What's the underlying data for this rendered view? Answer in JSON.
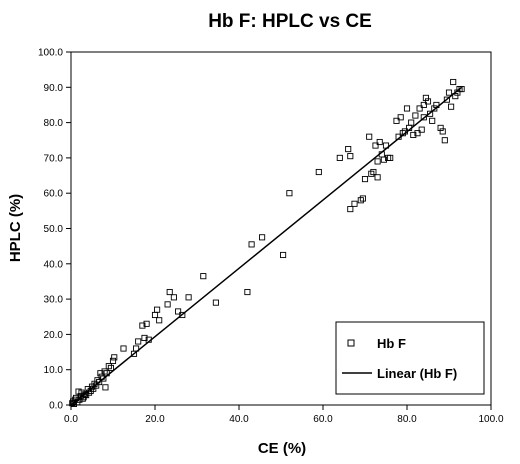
{
  "chart_data": {
    "type": "scatter",
    "title": "Hb F: HPLC vs CE",
    "xlabel": "CE (%)",
    "ylabel": "HPLC (%)",
    "xlim": [
      0,
      100
    ],
    "ylim": [
      0,
      100
    ],
    "x_ticks": [
      "0.0",
      "20.0",
      "40.0",
      "60.0",
      "80.0",
      "100.0"
    ],
    "y_ticks": [
      "0.0",
      "10.0",
      "20.0",
      "30.0",
      "40.0",
      "50.0",
      "60.0",
      "70.0",
      "80.0",
      "90.0",
      "100.0"
    ],
    "grid": false,
    "legend_position": "bottom-right",
    "legend": [
      "Hb F",
      "Linear (Hb F)"
    ],
    "series": [
      {
        "name": "Hb F",
        "marker": "open-square",
        "points": [
          [
            0.3,
            0.5
          ],
          [
            0.5,
            1.0
          ],
          [
            0.7,
            0.3
          ],
          [
            1.0,
            1.5
          ],
          [
            1.2,
            2.0
          ],
          [
            1.5,
            0.8
          ],
          [
            1.8,
            3.8
          ],
          [
            2.0,
            1.5
          ],
          [
            2.3,
            2.5
          ],
          [
            2.5,
            3.5
          ],
          [
            2.8,
            1.8
          ],
          [
            3.0,
            2.2
          ],
          [
            3.3,
            3.0
          ],
          [
            3.6,
            2.8
          ],
          [
            4.0,
            4.5
          ],
          [
            4.3,
            3.5
          ],
          [
            4.7,
            4.0
          ],
          [
            5.0,
            5.2
          ],
          [
            5.3,
            4.6
          ],
          [
            5.6,
            6.0
          ],
          [
            6.0,
            5.5
          ],
          [
            6.3,
            7.0
          ],
          [
            6.7,
            6.5
          ],
          [
            7.0,
            9.0
          ],
          [
            7.3,
            8.0
          ],
          [
            7.7,
            7.5
          ],
          [
            8.0,
            9.5
          ],
          [
            8.2,
            5.0
          ],
          [
            8.5,
            9.0
          ],
          [
            9.0,
            11.0
          ],
          [
            9.5,
            10.5
          ],
          [
            10.0,
            12.5
          ],
          [
            10.3,
            13.5
          ],
          [
            12.5,
            16.0
          ],
          [
            15.0,
            14.5
          ],
          [
            15.5,
            16.0
          ],
          [
            16.0,
            18.0
          ],
          [
            17.0,
            22.5
          ],
          [
            17.5,
            19.0
          ],
          [
            18.0,
            23.0
          ],
          [
            18.5,
            18.5
          ],
          [
            20.0,
            25.5
          ],
          [
            20.5,
            27.0
          ],
          [
            21.0,
            24.0
          ],
          [
            23.0,
            28.5
          ],
          [
            23.5,
            32.0
          ],
          [
            24.5,
            30.5
          ],
          [
            25.5,
            26.5
          ],
          [
            26.5,
            25.5
          ],
          [
            28.0,
            30.5
          ],
          [
            31.5,
            36.5
          ],
          [
            34.5,
            29.0
          ],
          [
            42.0,
            32.0
          ],
          [
            43.0,
            45.5
          ],
          [
            45.5,
            47.5
          ],
          [
            50.5,
            42.5
          ],
          [
            52.0,
            60.0
          ],
          [
            59.0,
            66.0
          ],
          [
            64.0,
            70.0
          ],
          [
            66.0,
            72.5
          ],
          [
            66.5,
            70.5
          ],
          [
            66.5,
            55.5
          ],
          [
            67.5,
            57.0
          ],
          [
            69.0,
            58.0
          ],
          [
            69.5,
            58.5
          ],
          [
            70.0,
            64.0
          ],
          [
            71.0,
            76.0
          ],
          [
            71.5,
            65.5
          ],
          [
            72.0,
            66.0
          ],
          [
            72.5,
            73.5
          ],
          [
            73.0,
            64.5
          ],
          [
            73.0,
            69.0
          ],
          [
            73.5,
            74.5
          ],
          [
            74.0,
            71.0
          ],
          [
            74.5,
            69.5
          ],
          [
            75.0,
            73.5
          ],
          [
            75.5,
            70.0
          ],
          [
            76.0,
            70.0
          ],
          [
            77.5,
            80.5
          ],
          [
            78.0,
            76.0
          ],
          [
            78.5,
            81.5
          ],
          [
            79.0,
            77.0
          ],
          [
            79.5,
            77.5
          ],
          [
            80.0,
            84.0
          ],
          [
            80.5,
            78.5
          ],
          [
            81.0,
            80.0
          ],
          [
            81.5,
            76.5
          ],
          [
            82.0,
            82.0
          ],
          [
            82.5,
            77.0
          ],
          [
            83.0,
            84.0
          ],
          [
            83.5,
            78.0
          ],
          [
            84.0,
            81.5
          ],
          [
            84.0,
            85.0
          ],
          [
            84.5,
            87.0
          ],
          [
            85.0,
            86.0
          ],
          [
            85.5,
            82.5
          ],
          [
            86.0,
            80.5
          ],
          [
            86.5,
            84.0
          ],
          [
            87.0,
            85.0
          ],
          [
            88.0,
            78.5
          ],
          [
            88.5,
            77.5
          ],
          [
            89.0,
            75.0
          ],
          [
            89.5,
            86.5
          ],
          [
            90.0,
            88.5
          ],
          [
            90.5,
            84.5
          ],
          [
            91.0,
            91.5
          ],
          [
            91.5,
            87.5
          ],
          [
            92.0,
            88.5
          ],
          [
            92.5,
            89.5
          ],
          [
            93.0,
            89.5
          ]
        ]
      },
      {
        "name": "Linear (Hb F)",
        "type": "line",
        "points": [
          [
            0,
            0
          ],
          [
            93,
            90
          ]
        ]
      }
    ]
  }
}
